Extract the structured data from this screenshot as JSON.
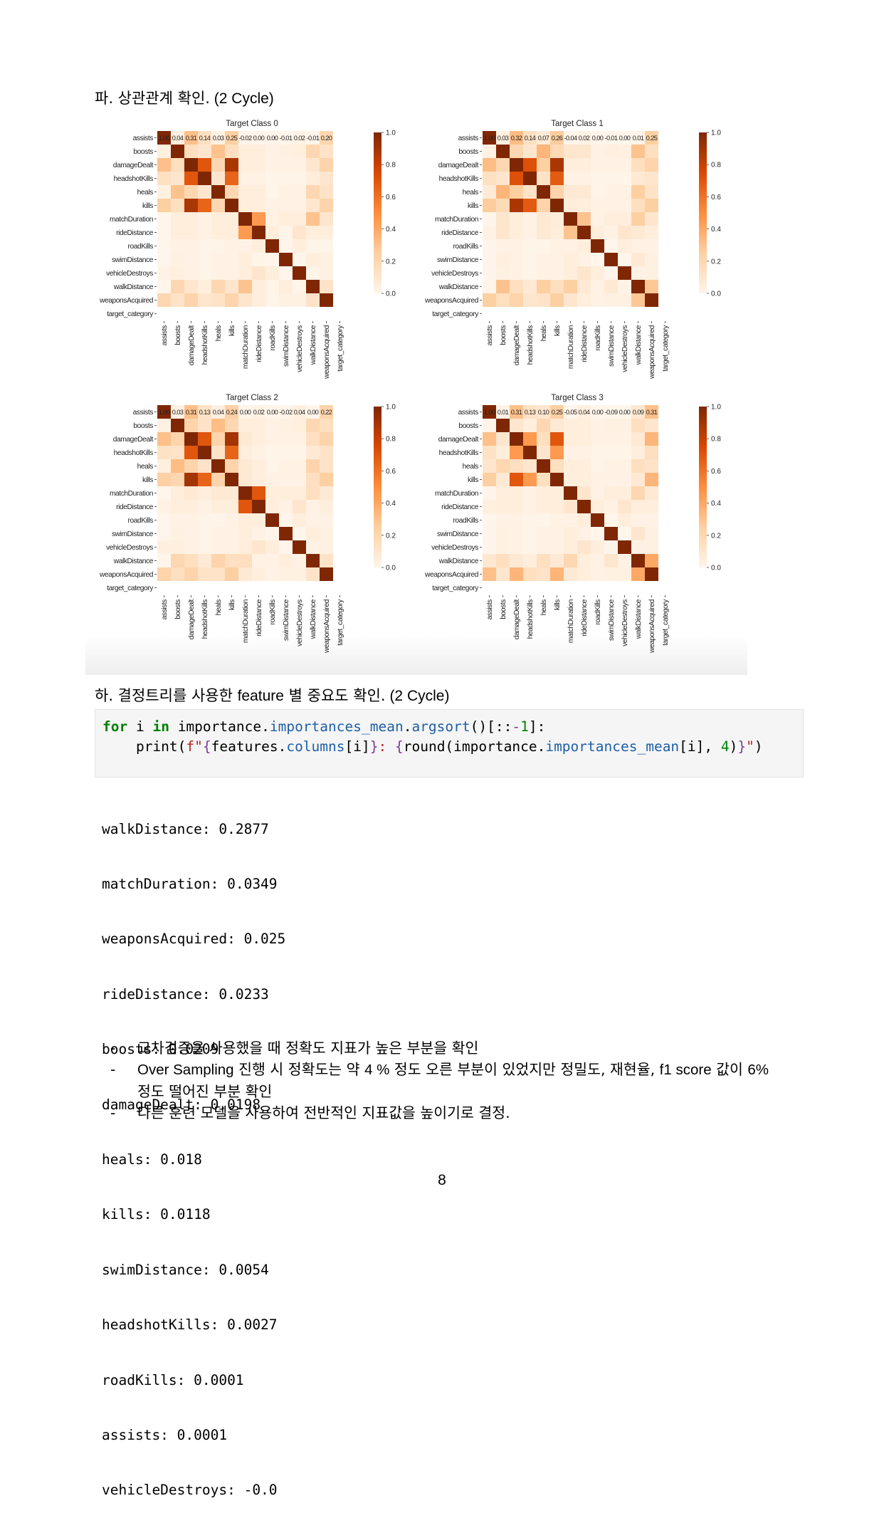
{
  "section_pa": {
    "korean": "파. 상관관계 확인.",
    "latin": " (2 Cycle)"
  },
  "section_ha": {
    "k1": "하. 결정트리를 사용한 ",
    "l1": "feature",
    "k2": " 별 중요도 확인.",
    "l2": " (2 Cycle)"
  },
  "chart_data": [
    {
      "type": "heatmap",
      "title": "Target Class 0",
      "features": [
        "assists",
        "boosts",
        "damageDealt",
        "headshotKills",
        "heals",
        "kills",
        "matchDuration",
        "rideDistance",
        "roadKills",
        "swimDistance",
        "vehicleDestroys",
        "walkDistance",
        "weaponsAcquired",
        "target_category"
      ],
      "first_row_labels": [
        "1.00",
        "0.04",
        "0.31",
        "0.14",
        "0.03",
        "0.25",
        "-0.02",
        "0.00",
        "0.00",
        "-0.01",
        "0.02",
        "-0.01",
        "0.20"
      ],
      "values": [
        [
          1.0,
          0.04,
          0.31,
          0.14,
          0.03,
          0.25,
          -0.02,
          0.0,
          0.0,
          -0.01,
          0.02,
          -0.01,
          0.2,
          null
        ],
        [
          0.04,
          1.0,
          0.15,
          0.1,
          0.3,
          0.15,
          0.05,
          0.05,
          0.02,
          0.03,
          0.04,
          0.2,
          0.12,
          null
        ],
        [
          0.31,
          0.15,
          1.0,
          0.7,
          0.2,
          0.88,
          0.05,
          0.05,
          0.02,
          0.02,
          0.02,
          0.1,
          0.22,
          null
        ],
        [
          0.14,
          0.1,
          0.7,
          1.0,
          0.1,
          0.65,
          0.02,
          0.02,
          0.01,
          0.01,
          0.01,
          0.05,
          0.1,
          null
        ],
        [
          0.03,
          0.3,
          0.2,
          0.1,
          1.0,
          0.2,
          0.05,
          0.05,
          0.01,
          0.02,
          0.02,
          0.2,
          0.12,
          null
        ],
        [
          0.25,
          0.15,
          0.88,
          0.65,
          0.2,
          1.0,
          0.05,
          0.05,
          0.02,
          0.02,
          0.02,
          0.1,
          0.22,
          null
        ],
        [
          -0.02,
          0.05,
          0.05,
          0.02,
          0.05,
          0.05,
          1.0,
          0.45,
          0.02,
          0.05,
          0.05,
          0.3,
          0.1,
          null
        ],
        [
          0.0,
          0.05,
          0.05,
          0.02,
          0.05,
          0.05,
          0.45,
          1.0,
          0.05,
          0.01,
          0.1,
          0.05,
          0.05,
          null
        ],
        [
          0.0,
          0.02,
          0.02,
          0.01,
          0.01,
          0.02,
          0.02,
          0.05,
          1.0,
          0.0,
          0.05,
          0.01,
          0.01,
          null
        ],
        [
          -0.01,
          0.03,
          0.02,
          0.01,
          0.02,
          0.02,
          0.05,
          0.01,
          0.0,
          1.0,
          0.0,
          0.05,
          0.03,
          null
        ],
        [
          0.02,
          0.04,
          0.02,
          0.01,
          0.02,
          0.02,
          0.05,
          0.1,
          0.05,
          0.0,
          1.0,
          0.01,
          0.03,
          null
        ],
        [
          -0.01,
          0.2,
          0.1,
          0.05,
          0.2,
          0.1,
          0.3,
          0.05,
          0.01,
          0.05,
          0.01,
          1.0,
          0.12,
          null
        ],
        [
          0.2,
          0.12,
          0.22,
          0.1,
          0.12,
          0.22,
          0.1,
          0.05,
          0.01,
          0.03,
          0.03,
          0.12,
          1.0,
          null
        ],
        [
          null,
          null,
          null,
          null,
          null,
          null,
          null,
          null,
          null,
          null,
          null,
          null,
          null,
          null
        ]
      ],
      "colorbar": {
        "min": 0.0,
        "max": 1.0,
        "ticks": [
          "0.0",
          "0.2",
          "0.4",
          "0.6",
          "0.8",
          "1.0"
        ]
      }
    },
    {
      "type": "heatmap",
      "title": "Target Class 1",
      "features": [
        "assists",
        "boosts",
        "damageDealt",
        "headshotKills",
        "heals",
        "kills",
        "matchDuration",
        "rideDistance",
        "roadKills",
        "swimDistance",
        "vehicleDestroys",
        "walkDistance",
        "weaponsAcquired",
        "target_category"
      ],
      "first_row_labels": [
        "1.00",
        "0.03",
        "0.32",
        "0.14",
        "0.07",
        "0.26",
        "-0.04",
        "0.02",
        "0.00",
        "-0.01",
        "0.00",
        "0.01",
        "0.25"
      ],
      "values": [
        [
          1.0,
          0.03,
          0.32,
          0.14,
          0.07,
          0.26,
          -0.04,
          0.02,
          0.0,
          -0.01,
          0.0,
          0.01,
          0.25,
          null
        ],
        [
          0.03,
          1.0,
          0.2,
          0.1,
          0.35,
          0.18,
          0.1,
          0.1,
          0.02,
          0.04,
          0.03,
          0.3,
          0.15,
          null
        ],
        [
          0.32,
          0.2,
          1.0,
          0.72,
          0.25,
          0.88,
          0.05,
          0.05,
          0.02,
          0.02,
          0.02,
          0.15,
          0.22,
          null
        ],
        [
          0.14,
          0.1,
          0.72,
          1.0,
          0.12,
          0.68,
          0.02,
          0.02,
          0.01,
          0.01,
          0.01,
          0.08,
          0.1,
          null
        ],
        [
          0.07,
          0.35,
          0.25,
          0.12,
          1.0,
          0.22,
          0.08,
          0.08,
          0.01,
          0.02,
          0.02,
          0.25,
          0.12,
          null
        ],
        [
          0.26,
          0.18,
          0.88,
          0.68,
          0.22,
          1.0,
          0.06,
          0.05,
          0.02,
          0.02,
          0.02,
          0.15,
          0.25,
          null
        ],
        [
          -0.04,
          0.1,
          0.05,
          0.02,
          0.08,
          0.06,
          1.0,
          0.3,
          0.02,
          0.05,
          0.05,
          0.25,
          0.1,
          null
        ],
        [
          0.02,
          0.1,
          0.05,
          0.02,
          0.08,
          0.05,
          0.3,
          1.0,
          0.05,
          0.02,
          0.1,
          0.08,
          0.05,
          null
        ],
        [
          0.0,
          0.02,
          0.02,
          0.01,
          0.01,
          0.02,
          0.02,
          0.05,
          1.0,
          0.0,
          0.05,
          0.02,
          0.02,
          null
        ],
        [
          -0.01,
          0.04,
          0.02,
          0.01,
          0.02,
          0.02,
          0.05,
          0.02,
          0.0,
          1.0,
          0.0,
          0.08,
          0.03,
          null
        ],
        [
          0.0,
          0.03,
          0.02,
          0.01,
          0.02,
          0.02,
          0.05,
          0.1,
          0.05,
          0.0,
          1.0,
          0.02,
          0.03,
          null
        ],
        [
          0.01,
          0.3,
          0.15,
          0.08,
          0.25,
          0.15,
          0.25,
          0.08,
          0.02,
          0.08,
          0.02,
          1.0,
          0.28,
          null
        ],
        [
          0.25,
          0.15,
          0.22,
          0.1,
          0.12,
          0.25,
          0.1,
          0.05,
          0.02,
          0.03,
          0.03,
          0.28,
          1.0,
          null
        ],
        [
          null,
          null,
          null,
          null,
          null,
          null,
          null,
          null,
          null,
          null,
          null,
          null,
          null,
          null
        ]
      ],
      "colorbar": {
        "min": 0.0,
        "max": 1.0,
        "ticks": [
          "0.0",
          "0.2",
          "0.4",
          "0.6",
          "0.8",
          "1.0"
        ]
      }
    },
    {
      "type": "heatmap",
      "title": "Target Class 2",
      "features": [
        "assists",
        "boosts",
        "damageDealt",
        "headshotKills",
        "heals",
        "kills",
        "matchDuration",
        "rideDistance",
        "roadKills",
        "swimDistance",
        "vehicleDestroys",
        "walkDistance",
        "weaponsAcquired",
        "target_category"
      ],
      "first_row_labels": [
        "1.00",
        "0.03",
        "0.31",
        "0.13",
        "0.04",
        "0.24",
        "0.00",
        "0.02",
        "0.00",
        "-0.02",
        "0.04",
        "0.00",
        "0.22"
      ],
      "values": [
        [
          1.0,
          0.03,
          0.31,
          0.13,
          0.04,
          0.24,
          0.0,
          0.02,
          0.0,
          -0.02,
          0.04,
          0.0,
          0.22,
          null
        ],
        [
          0.03,
          1.0,
          0.22,
          0.12,
          0.32,
          0.2,
          0.05,
          0.05,
          0.02,
          0.03,
          0.04,
          0.2,
          0.15,
          null
        ],
        [
          0.31,
          0.22,
          1.0,
          0.7,
          0.22,
          0.9,
          0.08,
          0.05,
          0.02,
          0.02,
          0.02,
          0.15,
          0.22,
          null
        ],
        [
          0.13,
          0.12,
          0.7,
          1.0,
          0.12,
          0.65,
          0.05,
          0.02,
          0.01,
          0.01,
          0.01,
          0.08,
          0.12,
          null
        ],
        [
          0.04,
          0.32,
          0.22,
          0.12,
          1.0,
          0.22,
          0.08,
          0.05,
          0.01,
          0.02,
          0.02,
          0.22,
          0.12,
          null
        ],
        [
          0.24,
          0.2,
          0.9,
          0.65,
          0.22,
          1.0,
          0.08,
          0.05,
          0.02,
          0.02,
          0.02,
          0.15,
          0.25,
          null
        ],
        [
          0.0,
          0.05,
          0.08,
          0.05,
          0.08,
          0.08,
          1.0,
          0.7,
          0.05,
          0.05,
          0.05,
          0.15,
          0.08,
          null
        ],
        [
          0.02,
          0.05,
          0.05,
          0.02,
          0.05,
          0.05,
          0.7,
          1.0,
          0.05,
          0.02,
          0.1,
          0.02,
          0.05,
          null
        ],
        [
          0.0,
          0.02,
          0.02,
          0.01,
          0.01,
          0.02,
          0.05,
          0.05,
          1.0,
          0.0,
          0.05,
          0.02,
          0.02,
          null
        ],
        [
          -0.02,
          0.03,
          0.02,
          0.01,
          0.02,
          0.02,
          0.05,
          0.02,
          0.0,
          1.0,
          0.0,
          0.05,
          0.03,
          null
        ],
        [
          0.04,
          0.04,
          0.02,
          0.01,
          0.02,
          0.02,
          0.05,
          0.1,
          0.05,
          0.0,
          1.0,
          0.02,
          0.03,
          null
        ],
        [
          0.0,
          0.2,
          0.15,
          0.08,
          0.22,
          0.15,
          0.15,
          0.02,
          0.02,
          0.05,
          0.02,
          1.0,
          0.12,
          null
        ],
        [
          0.22,
          0.15,
          0.22,
          0.12,
          0.12,
          0.25,
          0.08,
          0.05,
          0.02,
          0.03,
          0.03,
          0.12,
          1.0,
          null
        ],
        [
          null,
          null,
          null,
          null,
          null,
          null,
          null,
          null,
          null,
          null,
          null,
          null,
          null,
          null
        ]
      ],
      "colorbar": {
        "min": 0.0,
        "max": 1.0,
        "ticks": [
          "0.0",
          "0.2",
          "0.4",
          "0.6",
          "0.8",
          "1.0"
        ]
      }
    },
    {
      "type": "heatmap",
      "title": "Target Class 3",
      "features": [
        "assists",
        "boosts",
        "damageDealt",
        "headshotKills",
        "heals",
        "kills",
        "matchDuration",
        "rideDistance",
        "roadKills",
        "swimDistance",
        "vehicleDestroys",
        "walkDistance",
        "weaponsAcquired",
        "target_category"
      ],
      "first_row_labels": [
        "1.00",
        "0.01",
        "0.31",
        "0.13",
        "0.10",
        "0.25",
        "-0.05",
        "0.04",
        "0.00",
        "-0.09",
        "0.00",
        "0.09",
        "0.31"
      ],
      "values": [
        [
          1.0,
          0.01,
          0.31,
          0.13,
          0.1,
          0.25,
          -0.05,
          0.04,
          0.0,
          -0.09,
          0.0,
          0.09,
          0.31,
          null
        ],
        [
          0.01,
          1.0,
          0.1,
          0.05,
          0.2,
          0.08,
          0.05,
          0.05,
          0.02,
          0.03,
          0.03,
          0.15,
          0.1,
          null
        ],
        [
          0.31,
          0.1,
          1.0,
          0.45,
          0.15,
          0.7,
          0.05,
          0.05,
          0.02,
          0.02,
          0.02,
          0.08,
          0.35,
          null
        ],
        [
          0.13,
          0.05,
          0.45,
          1.0,
          0.1,
          0.45,
          0.02,
          0.02,
          0.01,
          0.01,
          0.01,
          0.05,
          0.15,
          null
        ],
        [
          0.1,
          0.2,
          0.15,
          0.1,
          1.0,
          0.15,
          0.05,
          0.05,
          0.01,
          0.02,
          0.02,
          0.15,
          0.12,
          null
        ],
        [
          0.25,
          0.08,
          0.7,
          0.45,
          0.15,
          1.0,
          0.05,
          0.05,
          0.02,
          0.02,
          0.02,
          0.08,
          0.35,
          null
        ],
        [
          -0.05,
          0.05,
          0.05,
          0.02,
          0.05,
          0.05,
          1.0,
          0.1,
          0.02,
          0.05,
          0.05,
          0.2,
          0.08,
          null
        ],
        [
          0.04,
          0.05,
          0.05,
          0.02,
          0.05,
          0.05,
          0.1,
          1.0,
          0.05,
          0.02,
          0.1,
          0.05,
          0.05,
          null
        ],
        [
          0.0,
          0.02,
          0.02,
          0.01,
          0.01,
          0.02,
          0.02,
          0.05,
          1.0,
          0.0,
          0.05,
          0.02,
          0.02,
          null
        ],
        [
          -0.09,
          0.03,
          0.02,
          0.01,
          0.02,
          0.02,
          0.05,
          0.02,
          0.0,
          1.0,
          0.0,
          0.1,
          0.03,
          null
        ],
        [
          0.0,
          0.03,
          0.02,
          0.01,
          0.02,
          0.02,
          0.05,
          0.1,
          0.05,
          0.0,
          1.0,
          0.02,
          0.03,
          null
        ],
        [
          0.09,
          0.15,
          0.08,
          0.05,
          0.15,
          0.08,
          0.2,
          0.05,
          0.02,
          0.1,
          0.02,
          1.0,
          0.4,
          null
        ],
        [
          0.31,
          0.1,
          0.35,
          0.15,
          0.12,
          0.35,
          0.08,
          0.05,
          0.02,
          0.03,
          0.03,
          0.4,
          1.0,
          null
        ],
        [
          null,
          null,
          null,
          null,
          null,
          null,
          null,
          null,
          null,
          null,
          null,
          null,
          null,
          null
        ]
      ],
      "colorbar": {
        "min": 0.0,
        "max": 1.0,
        "ticks": [
          "0.0",
          "0.2",
          "0.4",
          "0.6",
          "0.8",
          "1.0"
        ]
      }
    }
  ],
  "code": {
    "kw_for": "for",
    "var_i": " i ",
    "kw_in": "in",
    "obj_importance": " importance.",
    "attr_importances_mean": "importances_mean",
    "dot": ".",
    "attr_argsort": "argsort",
    "slice_pre": "()[::",
    "minus": "-",
    "num_1": "1",
    "line1_end": "]:",
    "indent_print": "    print(",
    "fprefix": "f",
    "fstr_open": "\"",
    "brace_open": "{",
    "features_part": "features.",
    "attr_columns": "columns",
    "idx_i": "[i]",
    "brace_close": "}",
    "fstr_colon": ": ",
    "round_open": "round(importance.",
    "attr_importances_mean2": "importances_mean",
    "idx_i2": "[i], ",
    "num_4": "4",
    "round_close": ")",
    "fstr_close": "\"",
    "print_close": ")"
  },
  "output_lines": [
    "walkDistance: 0.2877",
    "matchDuration: 0.0349",
    "weaponsAcquired: 0.025",
    "rideDistance: 0.0233",
    "boosts: 0.0209",
    "damageDealt: 0.0198",
    "heals: 0.018",
    "kills: 0.0118",
    "swimDistance: 0.0054",
    "headshotKills: 0.0027",
    "roadKills: 0.0001",
    "assists: 0.0001",
    "vehicleDestroys: -0.0"
  ],
  "bullets": {
    "dash": "-",
    "b1": "교차검증을 사용했을 때 정확도 지표가 높은 부분을 확인",
    "b2_latin1": "Over Sampling",
    "b2_k1": " 진행 시 정확도는 약 ",
    "b2_latin2": "4 %",
    "b2_k2": " 정도 오른 부분이 있었지만 정밀도, 재현율, ",
    "b2_latin3": "f1 score",
    "b2_k3": " 값이 ",
    "b2_latin4": "6%",
    "b2_k4": " 정도 떨어진 부분 확인",
    "b3": "다른 훈련 모델을 사용하여 전반적인 지표값을 높이기로 결정."
  },
  "page_number": "8"
}
